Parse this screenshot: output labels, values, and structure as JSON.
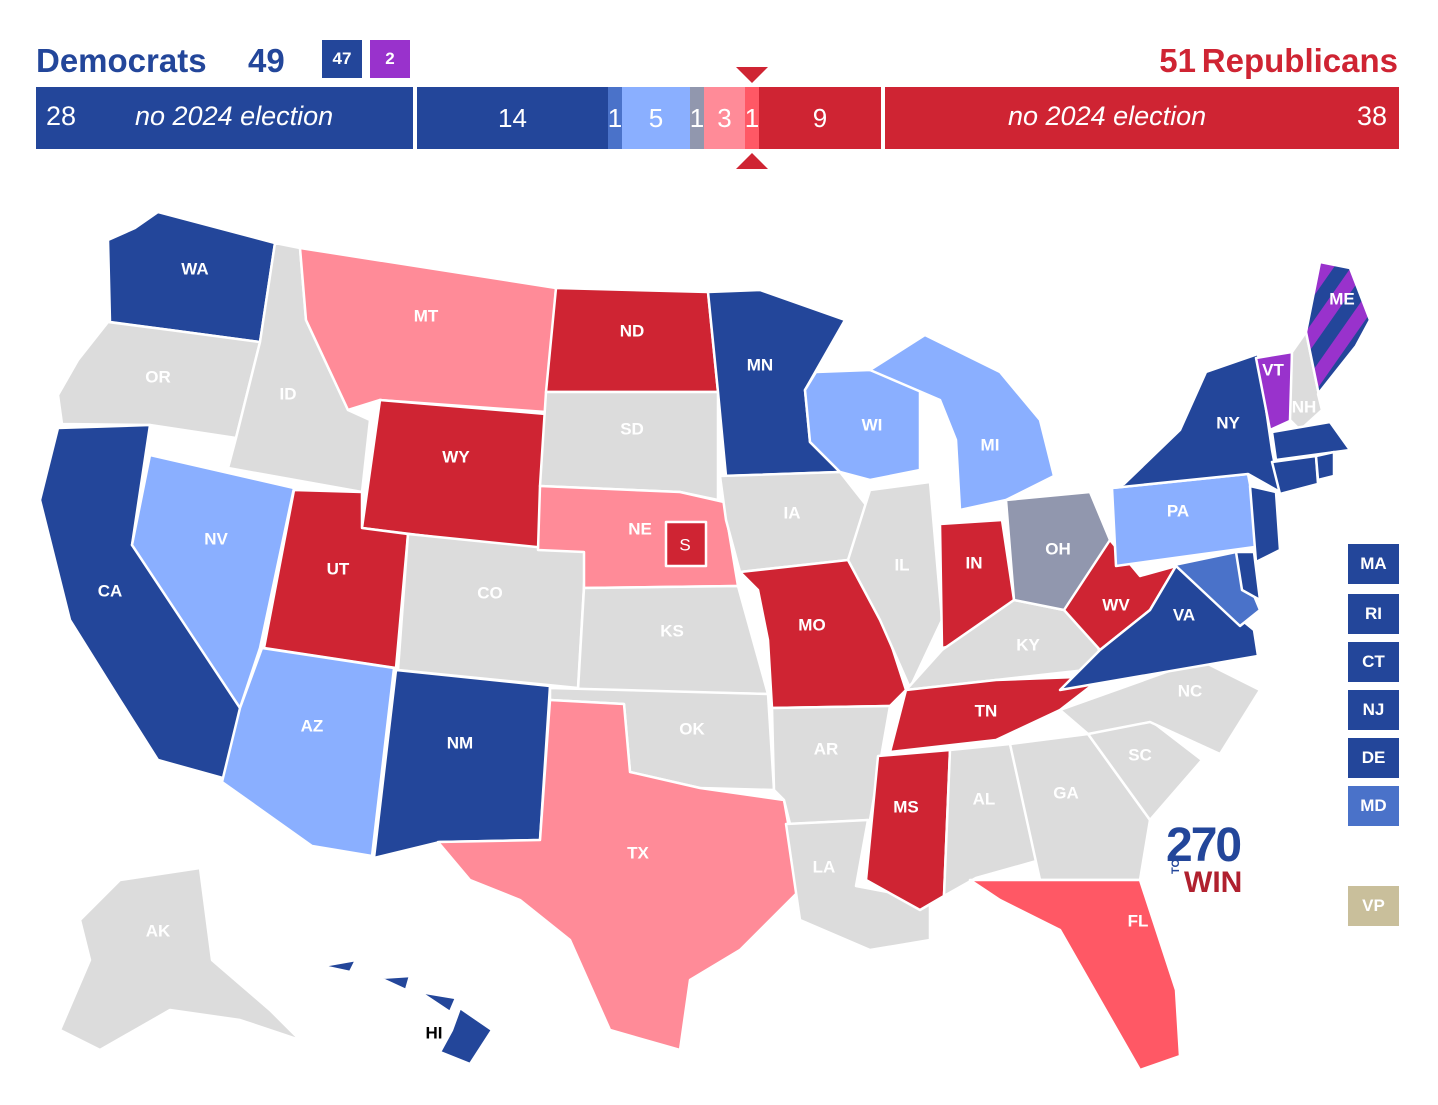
{
  "header": {
    "dem_label": "Democrats",
    "dem_total": "49",
    "dem_party_badge": "47",
    "ind_badge": "2",
    "rep_total": "51",
    "rep_label": "Republicans"
  },
  "seat_bar": {
    "dem_no_election_count": "28",
    "dem_no_election_label": "no 2024 election",
    "segments": [
      {
        "value": "14",
        "category": "safe-dem",
        "color": "#23469a"
      },
      {
        "value": "1",
        "category": "likely-dem",
        "color": "#4a72c9"
      },
      {
        "value": "5",
        "category": "leans-dem",
        "color": "#8aafff"
      },
      {
        "value": "1",
        "category": "tossup",
        "color": "#9197ae"
      },
      {
        "value": "3",
        "category": "leans-rep",
        "color": "#ff8b98"
      },
      {
        "value": "1",
        "category": "likely-rep",
        "color": "#ff5865"
      },
      {
        "value": "9",
        "category": "safe-rep",
        "color": "#cf2433"
      }
    ],
    "rep_no_election_label": "no 2024 election",
    "rep_no_election_count": "38"
  },
  "colors": {
    "safe_dem": "#23469a",
    "likely_dem": "#4a72c9",
    "leans_dem": "#8aafff",
    "tossup": "#9197ae",
    "leans_rep": "#ff8b98",
    "likely_rep": "#ff5865",
    "safe_rep": "#cf2433",
    "independent": "#9932cc",
    "no_election": "#dcdcdc",
    "vp": "#c9bf9b"
  },
  "states": {
    "WA": "WA",
    "OR": "OR",
    "CA": "CA",
    "ID": "ID",
    "NV": "NV",
    "MT": "MT",
    "WY": "WY",
    "UT": "UT",
    "AZ": "AZ",
    "CO": "CO",
    "NM": "NM",
    "ND": "ND",
    "SD": "SD",
    "NE": "NE",
    "NE_S": "S",
    "KS": "KS",
    "OK": "OK",
    "TX": "TX",
    "MN": "MN",
    "IA": "IA",
    "MO": "MO",
    "AR": "AR",
    "LA": "LA",
    "WI": "WI",
    "IL": "IL",
    "MS": "MS",
    "MI": "MI",
    "IN": "IN",
    "KY": "KY",
    "TN": "TN",
    "AL": "AL",
    "OH": "OH",
    "WV": "WV",
    "VA": "VA",
    "NC": "NC",
    "SC": "SC",
    "GA": "GA",
    "FL": "FL",
    "PA": "PA",
    "NY": "NY",
    "VT": "VT",
    "NH": "NH",
    "ME": "ME",
    "AK": "AK",
    "HI": "HI"
  },
  "side_boxes": [
    {
      "label": "MA",
      "color": "#23469a"
    },
    {
      "label": "RI",
      "color": "#23469a"
    },
    {
      "label": "CT",
      "color": "#23469a"
    },
    {
      "label": "NJ",
      "color": "#23469a"
    },
    {
      "label": "DE",
      "color": "#23469a"
    },
    {
      "label": "MD",
      "color": "#4a72c9"
    }
  ],
  "vp_label": "VP",
  "logo": {
    "number": "270",
    "to": "TO",
    "win": "WIN"
  }
}
